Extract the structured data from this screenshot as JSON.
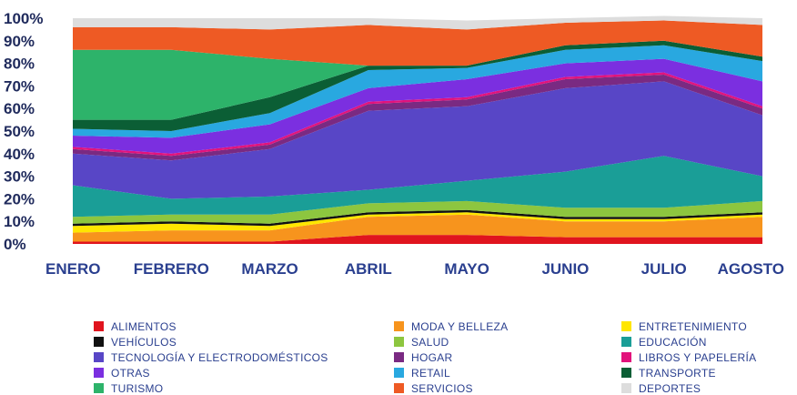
{
  "chart_data": {
    "type": "area",
    "stacked": true,
    "percent": true,
    "categories": [
      "ENERO",
      "FEBRERO",
      "MARZO",
      "ABRIL",
      "MAYO",
      "JUNIO",
      "JULIO",
      "AGOSTO"
    ],
    "ylim": [
      0,
      100
    ],
    "yticks": [
      "0%",
      "10%",
      "20%",
      "30%",
      "40%",
      "50%",
      "60%",
      "70%",
      "80%",
      "90%",
      "100%"
    ],
    "grid": false,
    "legend_position": "bottom",
    "series": [
      {
        "name": "ALIMENTOS",
        "color": "#e0141e",
        "values": [
          1,
          1,
          1,
          4,
          4,
          3,
          3,
          3
        ]
      },
      {
        "name": "MODA Y BELLEZA",
        "color": "#f7941d",
        "values": [
          4,
          5,
          5,
          8,
          9,
          7,
          7,
          9
        ]
      },
      {
        "name": "ENTRETENIMIENTO",
        "color": "#ffe600",
        "values": [
          3,
          3,
          2,
          1,
          1,
          1,
          1,
          1
        ]
      },
      {
        "name": "VEHÍCULOS",
        "color": "#111111",
        "values": [
          1,
          1,
          1,
          1,
          1,
          1,
          1,
          1
        ]
      },
      {
        "name": "SALUD",
        "color": "#8dc63f",
        "values": [
          3,
          3,
          4,
          4,
          4,
          4,
          4,
          5
        ]
      },
      {
        "name": "EDUCACIÓN",
        "color": "#1a9e97",
        "values": [
          14,
          7,
          8,
          6,
          9,
          16,
          23,
          11
        ]
      },
      {
        "name": "TECNOLOGÍA Y ELECTRODOMÉSTICOS",
        "color": "#5846c6",
        "values": [
          14,
          17,
          21,
          35,
          33,
          37,
          33,
          27
        ]
      },
      {
        "name": "HOGAR",
        "color": "#7a2a82",
        "values": [
          2,
          2,
          2,
          3,
          3,
          4,
          3,
          3
        ]
      },
      {
        "name": "LIBROS Y PAPELERÍA",
        "color": "#e2137c",
        "values": [
          1,
          1,
          1,
          1,
          1,
          1,
          1,
          1
        ]
      },
      {
        "name": "OTRAS",
        "color": "#7b2fe0",
        "values": [
          5,
          7,
          8,
          6,
          8,
          6,
          6,
          11
        ]
      },
      {
        "name": "RETAIL",
        "color": "#29a8e0",
        "values": [
          3,
          3,
          5,
          8,
          5,
          6,
          6,
          9
        ]
      },
      {
        "name": "TRANSPORTE",
        "color": "#0b5e35",
        "values": [
          4,
          5,
          7,
          2,
          1,
          2,
          2,
          2
        ]
      },
      {
        "name": "TURISMO",
        "color": "#2db36a",
        "values": [
          31,
          31,
          17,
          0,
          0,
          0,
          0,
          0
        ]
      },
      {
        "name": "SERVICIOS",
        "color": "#ee5a24",
        "values": [
          10,
          10,
          13,
          18,
          16,
          10,
          9,
          14
        ]
      },
      {
        "name": "DEPORTES",
        "color": "#dddddd",
        "values": [
          4,
          4,
          5,
          3,
          4,
          2,
          2,
          3
        ]
      }
    ],
    "legend_order": [
      "ALIMENTOS",
      "MODA Y BELLEZA",
      "ENTRETENIMIENTO",
      "VEHÍCULOS",
      "SALUD",
      "EDUCACIÓN",
      "TECNOLOGÍA Y ELECTRODOMÉSTICOS",
      "HOGAR",
      "LIBROS Y PAPELERÍA",
      "OTRAS",
      "RETAIL",
      "TRANSPORTE",
      "TURISMO",
      "SERVICIOS",
      "DEPORTES"
    ]
  }
}
